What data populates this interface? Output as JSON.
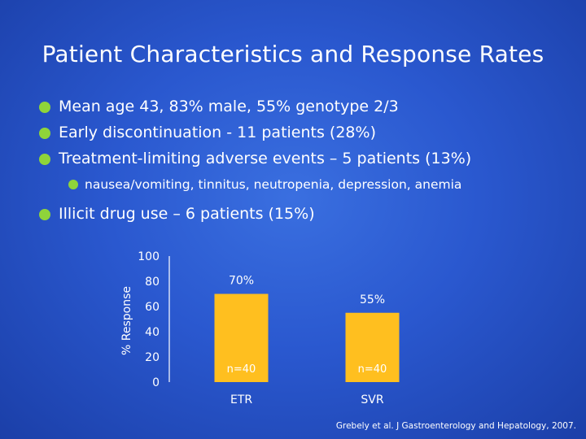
{
  "slide": {
    "title": "Patient Characteristics and Response Rates",
    "bullets": [
      "Mean age 43, 83% male, 55% genotype 2/3",
      "Early discontinuation - 11 patients (28%)",
      "Treatment-limiting adverse events – 5 patients (13%)"
    ],
    "sub_bullet": "nausea/vomiting, tinnitus, neutropenia, depression, anemia",
    "bullet_last": "Illicit drug use – 6 patients (15%)",
    "citation": "Grebely et al. J Gastroenterology and Hepatology, 2007.",
    "bullet_color": "#8fd43a"
  },
  "chart_data": {
    "type": "bar",
    "categories": [
      "ETR",
      "SVR"
    ],
    "values": [
      70,
      55
    ],
    "data_labels": [
      "70%",
      "55%"
    ],
    "n_labels": [
      "n=40",
      "n=40"
    ],
    "ylabel": "% Response",
    "ylim": [
      0,
      100
    ],
    "yticks": [
      0,
      20,
      40,
      60,
      80,
      100
    ],
    "bar_color": "#ffbf1f",
    "grid": false
  }
}
